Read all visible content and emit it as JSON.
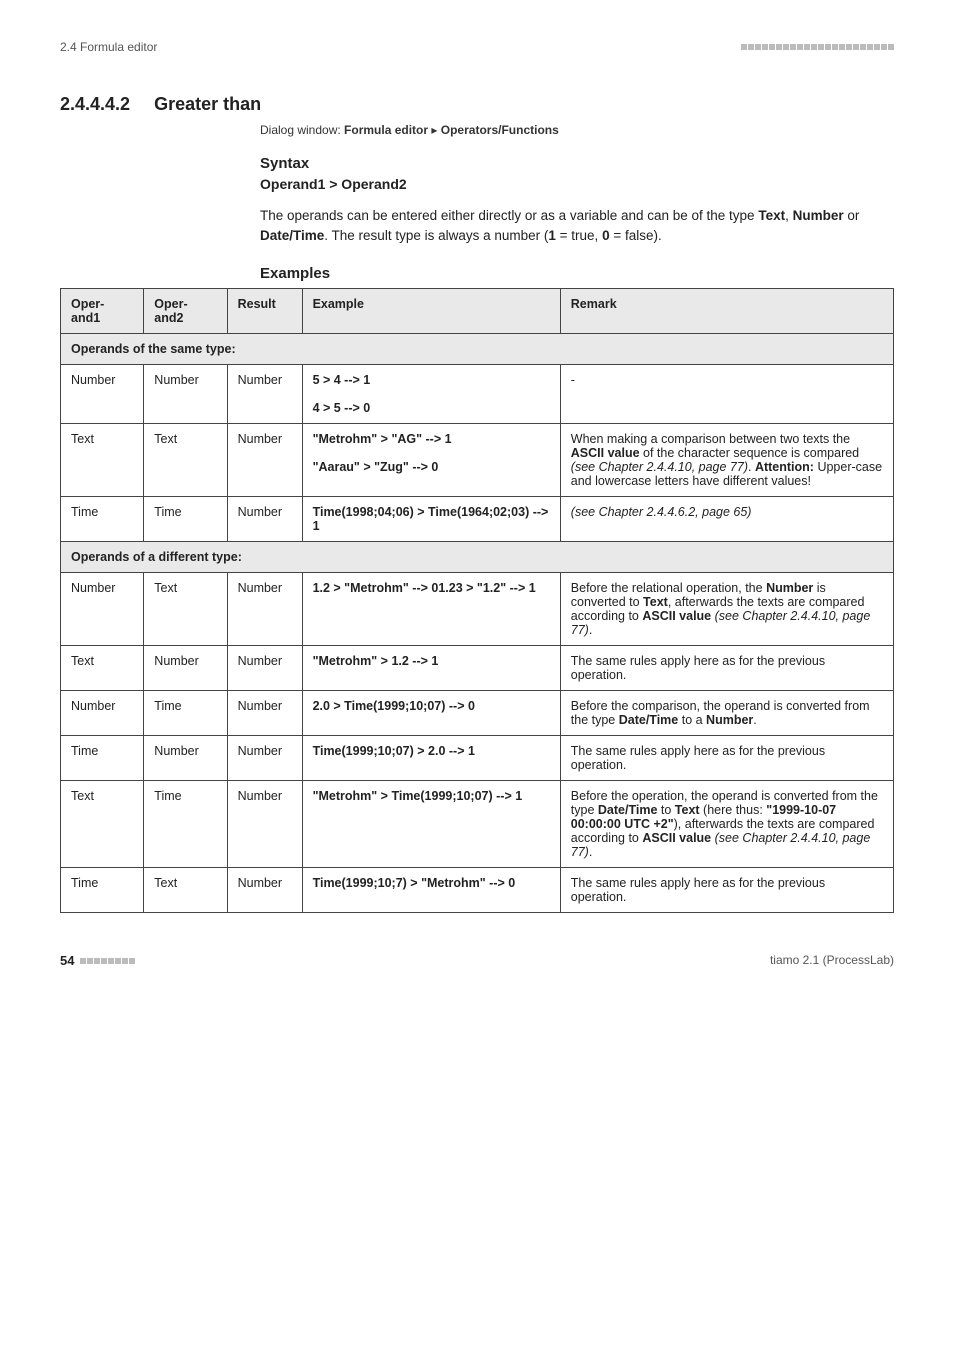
{
  "running_head": {
    "left": "2.4 Formula editor"
  },
  "section": {
    "number": "2.4.4.4.2",
    "title": "Greater than",
    "dialog_prefix": "Dialog window: ",
    "dialog_bold1": "Formula editor",
    "dialog_sep": " ▸ ",
    "dialog_bold2": "Operators/Functions",
    "syntax_label": "Syntax",
    "syntax_line": "Operand1 > Operand2",
    "para_1": "The operands can be entered either directly or as a variable and can be of the type ",
    "para_types": [
      "Text",
      "Number",
      "Date/Time"
    ],
    "para_2a": ". The result type is always a number (",
    "para_2b": "1",
    "para_2c": " = true, ",
    "para_2d": "0",
    "para_2e": " = false).",
    "examples_label": "Examples"
  },
  "table": {
    "headers": {
      "op1a": "Oper-",
      "op1b": "and1",
      "op2a": "Oper-",
      "op2b": "and2",
      "res": "Result",
      "exm": "Example",
      "rem": "Remark"
    },
    "group1": "Operands of the same type:",
    "group2": "Operands of a different type:",
    "rows": [
      {
        "op1": "Number",
        "op2": "Number",
        "res": "Number",
        "ex_lines": [
          "5 > 4 --> 1",
          "4 > 5 --> 0"
        ],
        "rem_parts": [
          {
            "t": "-"
          }
        ]
      },
      {
        "op1": "Text",
        "op2": "Text",
        "res": "Number",
        "ex_lines": [
          "\"Metrohm\" > \"AG\" --> 1",
          "\"Aarau\" > \"Zug\" --> 0"
        ],
        "rem_parts": [
          {
            "t": "When making a comparison between two texts the "
          },
          {
            "b": "ASCII value"
          },
          {
            "t": " of the character sequence is compared "
          },
          {
            "i": "(see Chapter 2.4.4.10, page 77)"
          },
          {
            "t": ". "
          },
          {
            "b": "Attention:"
          },
          {
            "t": " Upper-case and lowercase letters have different values!"
          }
        ]
      },
      {
        "op1": "Time",
        "op2": "Time",
        "res": "Number",
        "ex_lines": [
          "Time(1998;04;06) > Time(1964;02;03) --> 1"
        ],
        "rem_parts": [
          {
            "i": "(see Chapter 2.4.4.6.2, page 65)"
          }
        ]
      }
    ],
    "rows2": [
      {
        "op1": "Number",
        "op2": "Text",
        "res": "Number",
        "ex_lines": [
          "1.2 > \"Metrohm\" --> 01.23 > \"1.2\" --> 1"
        ],
        "rem_parts": [
          {
            "t": "Before the relational operation, the "
          },
          {
            "b": "Number"
          },
          {
            "t": " is converted to "
          },
          {
            "b": "Text"
          },
          {
            "t": ", afterwards the texts are compared according to "
          },
          {
            "b": "ASCII value"
          },
          {
            "t": " "
          },
          {
            "i": "(see Chapter 2.4.4.10, page 77)"
          },
          {
            "t": "."
          }
        ]
      },
      {
        "op1": "Text",
        "op2": "Number",
        "res": "Number",
        "ex_lines": [
          "\"Metrohm\" > 1.2 --> 1"
        ],
        "rem_parts": [
          {
            "t": "The same rules apply here as for the previous operation."
          }
        ]
      },
      {
        "op1": "Number",
        "op2": "Time",
        "res": "Number",
        "ex_lines": [
          "2.0 > Time(1999;10;07) --> 0"
        ],
        "rem_parts": [
          {
            "t": "Before the comparison, the operand is converted from the type "
          },
          {
            "b": "Date/Time"
          },
          {
            "t": " to a "
          },
          {
            "b": "Number"
          },
          {
            "t": "."
          }
        ]
      },
      {
        "op1": "Time",
        "op2": "Number",
        "res": "Number",
        "ex_lines": [
          "Time(1999;10;07) > 2.0 --> 1"
        ],
        "rem_parts": [
          {
            "t": "The same rules apply here as for the previous operation."
          }
        ]
      },
      {
        "op1": "Text",
        "op2": "Time",
        "res": "Number",
        "ex_lines": [
          "\"Metrohm\" > Time(1999;10;07) --> 1"
        ],
        "rem_parts": [
          {
            "t": "Before the operation, the operand is converted from the type "
          },
          {
            "b": "Date/Time"
          },
          {
            "t": " to "
          },
          {
            "b": "Text"
          },
          {
            "t": " (here thus: "
          },
          {
            "b": "\"1999-10-07 00:00:00 UTC +2\""
          },
          {
            "t": "), afterwards the texts are compared according to "
          },
          {
            "b": "ASCII value"
          },
          {
            "t": " "
          },
          {
            "i": "(see Chapter 2.4.4.10, page 77)"
          },
          {
            "t": "."
          }
        ]
      },
      {
        "op1": "Time",
        "op2": "Text",
        "res": "Number",
        "ex_lines": [
          "Time(1999;10;7) > \"Metrohm\" --> 0"
        ],
        "rem_parts": [
          {
            "t": "The same rules apply here as for the previous operation."
          }
        ]
      }
    ]
  },
  "footer": {
    "page_num": "54",
    "right": "tiamo 2.1 (ProcessLab)"
  }
}
